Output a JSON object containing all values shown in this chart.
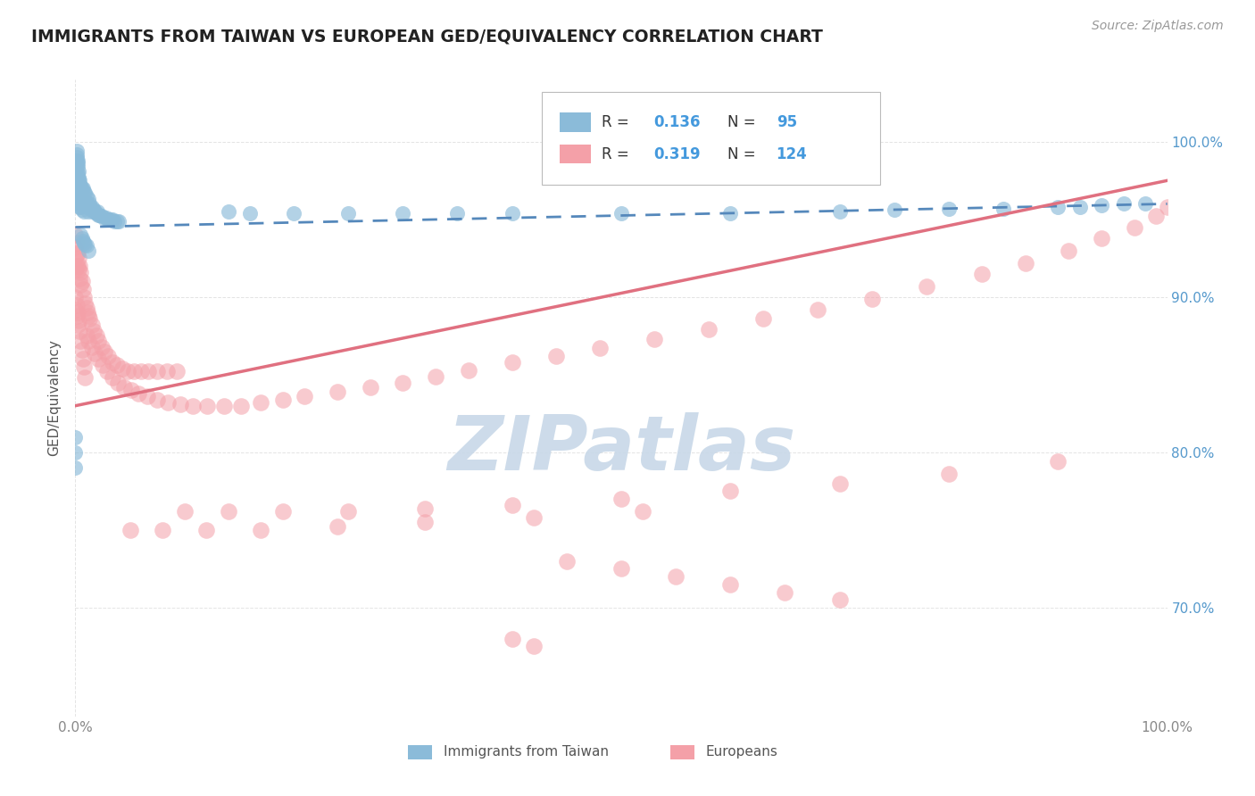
{
  "title": "IMMIGRANTS FROM TAIWAN VS EUROPEAN GED/EQUIVALENCY CORRELATION CHART",
  "source": "Source: ZipAtlas.com",
  "ylabel": "GED/Equivalency",
  "watermark": "ZIPatlas",
  "legend_entries": [
    {
      "label": "Immigrants from Taiwan",
      "R": "0.136",
      "N": "95",
      "color": "#8BBBD9"
    },
    {
      "label": "Europeans",
      "R": "0.319",
      "N": "124",
      "color": "#F4A0A8"
    }
  ],
  "x_range": [
    0.0,
    1.0
  ],
  "y_range": [
    0.63,
    1.04
  ],
  "y_ticks": [
    0.7,
    0.8,
    0.9,
    1.0
  ],
  "y_tick_labels": [
    "70.0%",
    "80.0%",
    "90.0%",
    "100.0%"
  ],
  "blue_color": "#8BBBD9",
  "pink_color": "#F4A0A8",
  "blue_line_color": "#5588BB",
  "pink_line_color": "#E07080",
  "watermark_color": "#C8D8E8",
  "title_color": "#222222",
  "label_color": "#555555",
  "axis_tick_color": "#888888",
  "grid_color": "#DDDDDD",
  "legend_val_color": "#4499DD",
  "right_axis_color": "#5599CC",
  "blue_line_y0": 0.945,
  "blue_line_y1": 0.96,
  "pink_line_y0": 0.83,
  "pink_line_y1": 0.975,
  "blue_x_vals": [
    0.001,
    0.001,
    0.002,
    0.002,
    0.003,
    0.003,
    0.003,
    0.004,
    0.004,
    0.004,
    0.005,
    0.005,
    0.005,
    0.006,
    0.006,
    0.006,
    0.007,
    0.007,
    0.008,
    0.008,
    0.008,
    0.009,
    0.009,
    0.01,
    0.01,
    0.011,
    0.012,
    0.012,
    0.013,
    0.014,
    0.015,
    0.016,
    0.017,
    0.018,
    0.019,
    0.02,
    0.021,
    0.022,
    0.024,
    0.026,
    0.028,
    0.03,
    0.032,
    0.034,
    0.036,
    0.038,
    0.04,
    0.005,
    0.006,
    0.007,
    0.008,
    0.009,
    0.01,
    0.012,
    0.001,
    0.002,
    0.003,
    0.004,
    0.005,
    0.001,
    0.002,
    0.003,
    0.004,
    0.001,
    0.002,
    0.003,
    0.001,
    0.002,
    0.001,
    0.002,
    0.001,
    0.0,
    0.0,
    0.0,
    0.14,
    0.16,
    0.2,
    0.25,
    0.3,
    0.35,
    0.4,
    0.5,
    0.6,
    0.7,
    0.75,
    0.8,
    0.85,
    0.9,
    0.92,
    0.94,
    0.96,
    0.98,
    0.0,
    0.0,
    0.0
  ],
  "blue_y_vals": [
    0.975,
    0.965,
    0.97,
    0.96,
    0.975,
    0.968,
    0.96,
    0.972,
    0.965,
    0.958,
    0.972,
    0.965,
    0.958,
    0.97,
    0.963,
    0.956,
    0.97,
    0.962,
    0.968,
    0.962,
    0.955,
    0.967,
    0.96,
    0.965,
    0.958,
    0.96,
    0.963,
    0.955,
    0.96,
    0.958,
    0.958,
    0.955,
    0.956,
    0.955,
    0.954,
    0.955,
    0.953,
    0.953,
    0.952,
    0.951,
    0.951,
    0.95,
    0.95,
    0.95,
    0.949,
    0.949,
    0.949,
    0.94,
    0.938,
    0.936,
    0.935,
    0.934,
    0.933,
    0.93,
    0.98,
    0.975,
    0.972,
    0.97,
    0.968,
    0.985,
    0.98,
    0.977,
    0.975,
    0.988,
    0.984,
    0.981,
    0.99,
    0.986,
    0.992,
    0.988,
    0.994,
    0.978,
    0.97,
    0.965,
    0.955,
    0.954,
    0.954,
    0.954,
    0.954,
    0.954,
    0.954,
    0.954,
    0.954,
    0.955,
    0.956,
    0.957,
    0.957,
    0.958,
    0.958,
    0.959,
    0.96,
    0.96,
    0.79,
    0.81,
    0.8
  ],
  "pink_x_vals": [
    0.0,
    0.0,
    0.0,
    0.0,
    0.001,
    0.001,
    0.001,
    0.002,
    0.002,
    0.003,
    0.003,
    0.004,
    0.004,
    0.005,
    0.005,
    0.006,
    0.007,
    0.008,
    0.009,
    0.01,
    0.011,
    0.012,
    0.013,
    0.015,
    0.017,
    0.019,
    0.021,
    0.024,
    0.027,
    0.03,
    0.034,
    0.038,
    0.043,
    0.048,
    0.054,
    0.06,
    0.067,
    0.075,
    0.084,
    0.093,
    0.01,
    0.012,
    0.015,
    0.018,
    0.021,
    0.025,
    0.029,
    0.034,
    0.039,
    0.045,
    0.051,
    0.058,
    0.066,
    0.075,
    0.085,
    0.096,
    0.108,
    0.121,
    0.136,
    0.152,
    0.17,
    0.19,
    0.21,
    0.24,
    0.27,
    0.3,
    0.33,
    0.36,
    0.4,
    0.44,
    0.48,
    0.53,
    0.58,
    0.63,
    0.68,
    0.73,
    0.78,
    0.83,
    0.87,
    0.91,
    0.94,
    0.97,
    0.99,
    1.0,
    0.0,
    0.0,
    0.001,
    0.001,
    0.002,
    0.002,
    0.003,
    0.004,
    0.005,
    0.006,
    0.007,
    0.008,
    0.009,
    0.05,
    0.08,
    0.12,
    0.17,
    0.24,
    0.32,
    0.42,
    0.52,
    0.1,
    0.14,
    0.19,
    0.25,
    0.32,
    0.4,
    0.5,
    0.6,
    0.7,
    0.8,
    0.9,
    0.45,
    0.5,
    0.55,
    0.6,
    0.65,
    0.7,
    0.4,
    0.42
  ],
  "pink_y_vals": [
    0.94,
    0.932,
    0.925,
    0.918,
    0.935,
    0.928,
    0.92,
    0.928,
    0.92,
    0.925,
    0.918,
    0.92,
    0.912,
    0.916,
    0.908,
    0.91,
    0.905,
    0.9,
    0.896,
    0.893,
    0.89,
    0.888,
    0.886,
    0.882,
    0.878,
    0.875,
    0.872,
    0.868,
    0.865,
    0.862,
    0.858,
    0.856,
    0.854,
    0.852,
    0.852,
    0.852,
    0.852,
    0.852,
    0.852,
    0.852,
    0.875,
    0.872,
    0.868,
    0.864,
    0.86,
    0.856,
    0.852,
    0.848,
    0.845,
    0.842,
    0.84,
    0.838,
    0.836,
    0.834,
    0.832,
    0.831,
    0.83,
    0.83,
    0.83,
    0.83,
    0.832,
    0.834,
    0.836,
    0.839,
    0.842,
    0.845,
    0.849,
    0.853,
    0.858,
    0.862,
    0.867,
    0.873,
    0.879,
    0.886,
    0.892,
    0.899,
    0.907,
    0.915,
    0.922,
    0.93,
    0.938,
    0.945,
    0.952,
    0.958,
    0.9,
    0.892,
    0.895,
    0.888,
    0.89,
    0.882,
    0.885,
    0.878,
    0.872,
    0.866,
    0.86,
    0.855,
    0.848,
    0.75,
    0.75,
    0.75,
    0.75,
    0.752,
    0.755,
    0.758,
    0.762,
    0.762,
    0.762,
    0.762,
    0.762,
    0.764,
    0.766,
    0.77,
    0.775,
    0.78,
    0.786,
    0.794,
    0.73,
    0.725,
    0.72,
    0.715,
    0.71,
    0.705,
    0.68,
    0.675
  ]
}
